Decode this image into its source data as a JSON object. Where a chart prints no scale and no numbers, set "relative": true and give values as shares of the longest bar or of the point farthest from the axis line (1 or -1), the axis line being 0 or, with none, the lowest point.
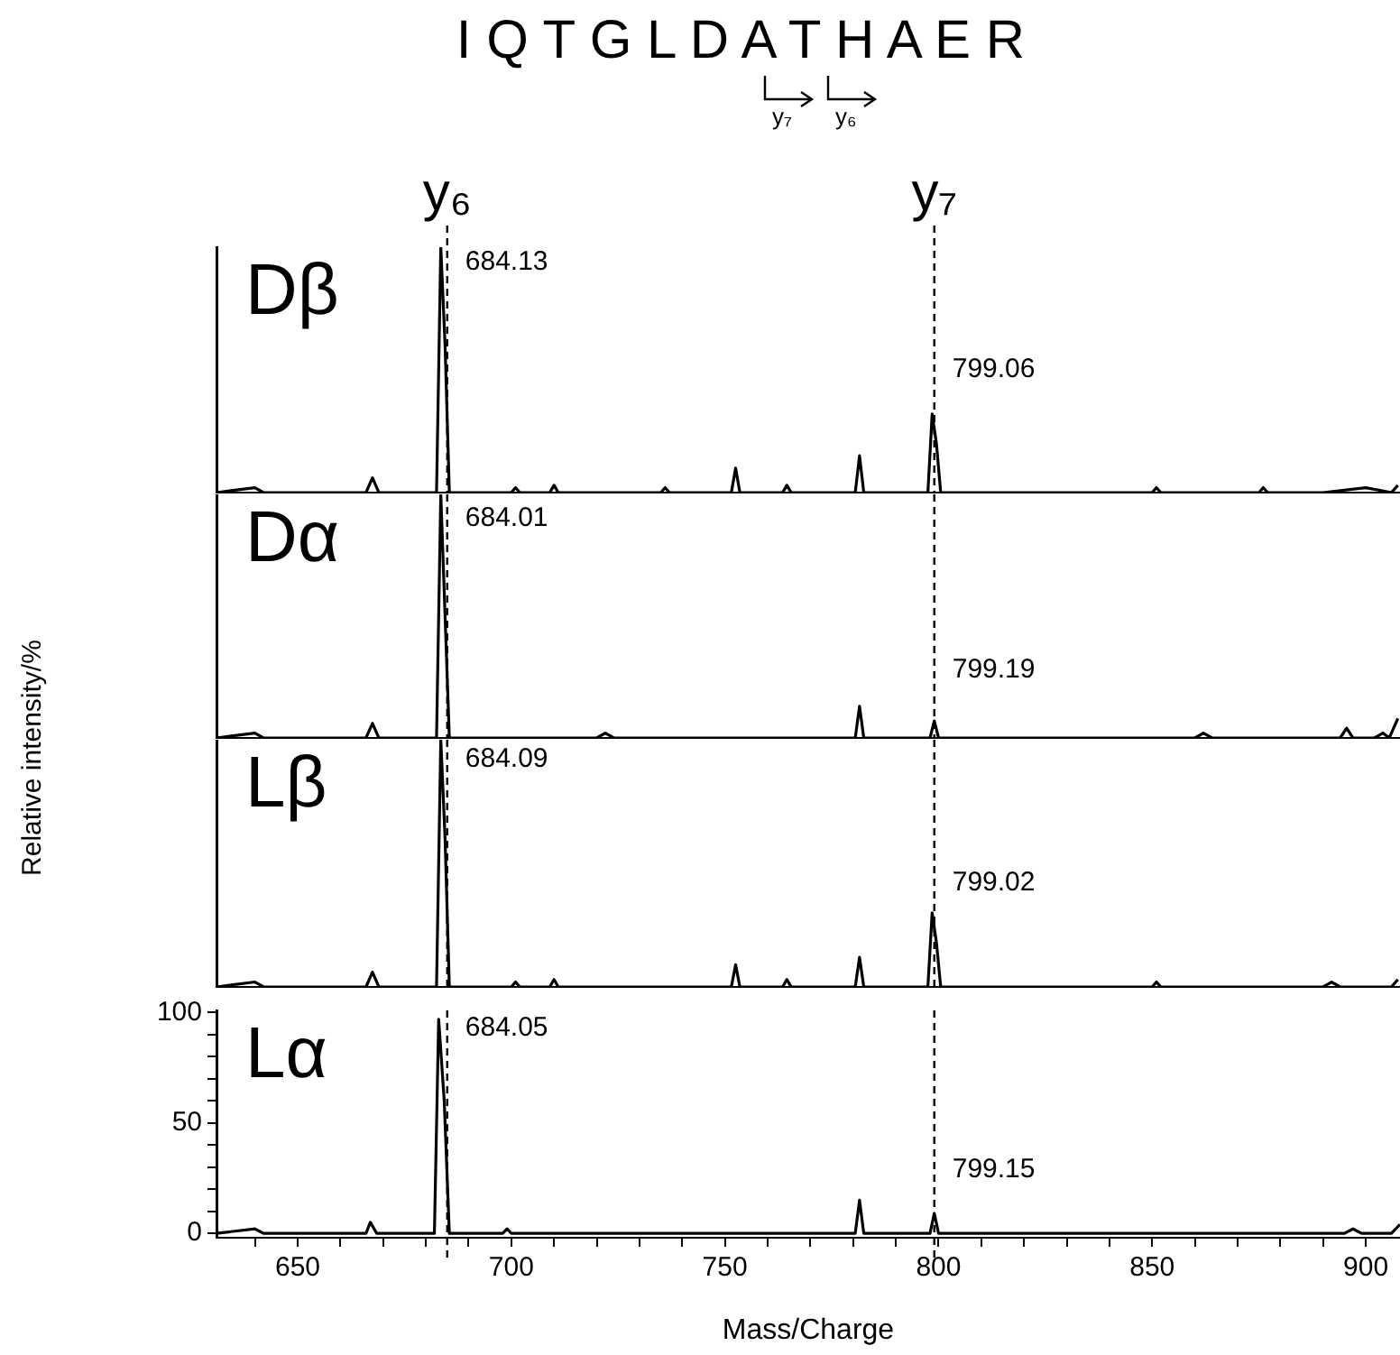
{
  "chart_data": [
    {
      "type": "line",
      "title": "I Q T G L D A T H A E R",
      "annotations": [
        "y₇",
        "y₆",
        "684.13",
        "799.06"
      ],
      "relative": true,
      "series": [
        {
          "name": "Dβ",
          "color": "#000000",
          "x": [
            631,
            640,
            642,
            666,
            667.5,
            669,
            682.5,
            683.5,
            684.5,
            685.5,
            700,
            701,
            702,
            709,
            710,
            711,
            735,
            736,
            737,
            751.5,
            752.5,
            753.5,
            763.5,
            764.5,
            765.5,
            780.5,
            781.5,
            782.5,
            797.5,
            798.5,
            799.5,
            800.5,
            850,
            851,
            852,
            875,
            876,
            877,
            890,
            900,
            906,
            907.5
          ],
          "values": [
            0,
            0.02,
            0,
            0,
            0.06,
            0,
            0,
            1,
            0.6,
            0,
            0,
            0.02,
            0,
            0,
            0.03,
            0,
            0,
            0.02,
            0,
            0,
            0.1,
            0,
            0,
            0.03,
            0,
            0,
            0.15,
            0,
            0,
            0.32,
            0.2,
            0,
            0,
            0.02,
            0,
            0,
            0.02,
            0,
            0,
            0.02,
            0,
            0.03
          ]
        }
      ],
      "xlim": [
        631,
        908
      ],
      "tick_labels": false,
      "ref_lines": [
        {
          "axis": "x",
          "value": 685,
          "label": "y₆",
          "line_style": "dashed"
        },
        {
          "axis": "x",
          "value": 799,
          "label": "y₇",
          "line_style": "dashed"
        }
      ]
    },
    {
      "type": "line",
      "annotations": [
        "684.01",
        "799.19"
      ],
      "relative": true,
      "series": [
        {
          "name": "Dα",
          "color": "#000000",
          "x": [
            631,
            640,
            642,
            666,
            667.5,
            669,
            682.5,
            683.5,
            684.5,
            685.5,
            720,
            722,
            724,
            780.5,
            781.5,
            782.5,
            798,
            799,
            800,
            860,
            862,
            864,
            894,
            895.5,
            897,
            902,
            904,
            905.5,
            907.5
          ],
          "values": [
            0,
            0.02,
            0,
            0,
            0.06,
            0,
            0,
            1,
            0.5,
            0,
            0,
            0.02,
            0,
            0,
            0.13,
            0,
            0,
            0.07,
            0,
            0,
            0.02,
            0,
            0,
            0.04,
            0,
            0,
            0.02,
            0,
            0.08
          ]
        }
      ],
      "xlim": [
        631,
        908
      ],
      "tick_labels": false,
      "ref_lines": [
        {
          "axis": "x",
          "value": 685,
          "line_style": "dashed"
        },
        {
          "axis": "x",
          "value": 799,
          "line_style": "dashed"
        }
      ]
    },
    {
      "type": "line",
      "annotations": [
        "684.09",
        "799.02"
      ],
      "relative": true,
      "series": [
        {
          "name": "Lβ",
          "color": "#000000",
          "x": [
            631,
            640,
            642,
            666,
            667.5,
            669,
            682.5,
            683.5,
            684.5,
            685.5,
            700,
            701,
            702,
            709,
            710,
            711,
            751.5,
            752.5,
            753.5,
            763.5,
            764.5,
            765.5,
            780.5,
            781.5,
            782.5,
            797.5,
            798.5,
            799.5,
            800.5,
            850,
            851,
            852,
            890,
            892,
            894,
            906,
            907.5
          ],
          "values": [
            0,
            0.02,
            0,
            0,
            0.06,
            0,
            0,
            1,
            0.6,
            0,
            0,
            0.02,
            0,
            0,
            0.03,
            0,
            0,
            0.09,
            0,
            0,
            0.03,
            0,
            0,
            0.12,
            0,
            0,
            0.3,
            0.18,
            0,
            0,
            0.02,
            0,
            0,
            0.02,
            0,
            0,
            0.03
          ]
        }
      ],
      "xlim": [
        631,
        908
      ],
      "tick_labels": false,
      "ref_lines": [
        {
          "axis": "x",
          "value": 685,
          "line_style": "dashed"
        },
        {
          "axis": "x",
          "value": 799,
          "line_style": "dashed"
        }
      ]
    },
    {
      "type": "line",
      "xlabel": "Mass/Charge",
      "ylabel": "Relative intensity/%",
      "annotations": [
        "684.05",
        "799.15"
      ],
      "series": [
        {
          "name": "Lα",
          "color": "#000000",
          "x": [
            631,
            640,
            642,
            666,
            667,
            668.5,
            682,
            683,
            684.3,
            685.5,
            698,
            699,
            700,
            780.5,
            781.5,
            782.5,
            798,
            799,
            800,
            895,
            897,
            899,
            906,
            908
          ],
          "values": [
            0,
            2,
            0,
            0,
            5,
            0,
            0,
            97,
            60,
            0,
            0,
            2,
            0,
            0,
            15,
            0,
            0,
            9,
            0,
            0,
            2,
            0,
            0,
            4
          ]
        }
      ],
      "xlim": [
        631,
        908
      ],
      "ylim": [
        -2,
        101
      ],
      "xticks": [
        {
          "value": 640,
          "label": null
        },
        650,
        {
          "value": 660,
          "label": null
        },
        {
          "value": 670,
          "label": null
        },
        {
          "value": 680,
          "label": null
        },
        {
          "value": 690,
          "label": null
        },
        700,
        {
          "value": 710,
          "label": null
        },
        {
          "value": 720,
          "label": null
        },
        {
          "value": 730,
          "label": null
        },
        {
          "value": 740,
          "label": null
        },
        750,
        {
          "value": 760,
          "label": null
        },
        {
          "value": 770,
          "label": null
        },
        {
          "value": 780,
          "label": null
        },
        {
          "value": 790,
          "label": null
        },
        800,
        {
          "value": 810,
          "label": null
        },
        {
          "value": 820,
          "label": null
        },
        {
          "value": 830,
          "label": null
        },
        {
          "value": 840,
          "label": null
        },
        850,
        {
          "value": 860,
          "label": null
        },
        {
          "value": 870,
          "label": null
        },
        {
          "value": 880,
          "label": null
        },
        {
          "value": 890,
          "label": null
        },
        900
      ],
      "yticks": [
        0,
        {
          "value": 10,
          "label": null
        },
        {
          "value": 20,
          "label": null
        },
        {
          "value": 30,
          "label": null
        },
        {
          "value": 40,
          "label": null
        },
        50,
        {
          "value": 60,
          "label": null
        },
        {
          "value": 70,
          "label": null
        },
        {
          "value": 80,
          "label": null
        },
        {
          "value": 90,
          "label": null
        },
        100
      ],
      "ref_lines": [
        {
          "axis": "x",
          "value": 685,
          "line_style": "dashed"
        },
        {
          "axis": "x",
          "value": 799,
          "line_style": "dashed"
        }
      ]
    }
  ]
}
